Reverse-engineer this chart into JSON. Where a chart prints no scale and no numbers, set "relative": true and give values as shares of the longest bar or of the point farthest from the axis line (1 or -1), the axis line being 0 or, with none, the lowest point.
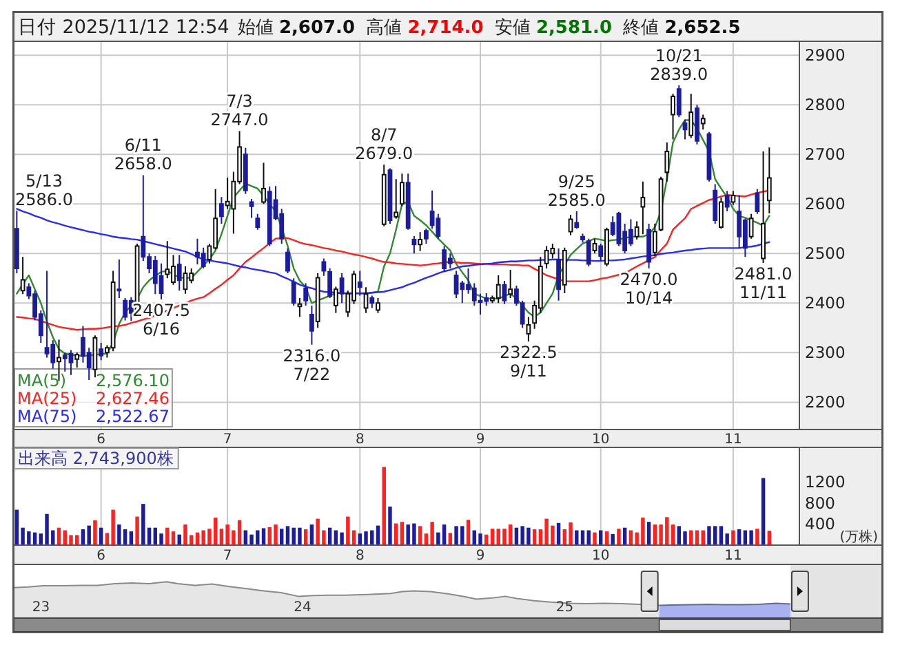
{
  "chart_data": [
    {
      "type": "candlestick",
      "title": "日付 2025/11/12 12:54",
      "annotations": [
        "始値 **2,607.0**",
        "高値 **2,714.0**",
        "安値 **2,581.0**",
        "終値 **2,652.5**",
        {
          "text": "5/13\n2586.0",
          "y": 2586
        },
        {
          "text": "6/11\n2658.0",
          "y": 2658
        },
        {
          "text": "2407.5\n6/16",
          "y": 2407.5
        },
        {
          "text": "7/3\n2747.0",
          "y": 2747
        },
        {
          "text": "2316.0\n7/22",
          "y": 2316
        },
        {
          "text": "8/7\n2679.0",
          "y": 2679
        },
        {
          "text": "2322.5\n9/11",
          "y": 2322.5
        },
        {
          "text": "9/25\n2585.0",
          "y": 2585
        },
        {
          "text": "2470.0\n10/14",
          "y": 2470
        },
        {
          "text": "10/21\n2839.0",
          "y": 2839
        },
        {
          "text": "2481.0\n11/11",
          "y": 2481
        }
      ],
      "categories": [
        null,
        null,
        null,
        null,
        null,
        null,
        null,
        null,
        null,
        null,
        null,
        null,
        null,
        null,
        "6",
        null,
        null,
        null,
        null,
        null,
        null,
        null,
        null,
        null,
        null,
        null,
        null,
        null,
        null,
        null,
        null,
        null,
        null,
        null,
        null,
        "7",
        null,
        null,
        null,
        null,
        null,
        null,
        null,
        null,
        null,
        null,
        null,
        null,
        null,
        null,
        null,
        null,
        null,
        null,
        null,
        null,
        null,
        "8",
        null,
        null,
        null,
        null,
        null,
        null,
        null,
        null,
        null,
        null,
        null,
        null,
        null,
        null,
        null,
        null,
        null,
        null,
        null,
        "9",
        null,
        null,
        null,
        null,
        null,
        null,
        null,
        null,
        null,
        null,
        null,
        null,
        null,
        null,
        null,
        null,
        null,
        null,
        null,
        "10",
        null,
        null,
        null,
        null,
        null,
        null,
        null,
        null,
        null,
        null,
        null,
        null,
        null,
        null,
        null,
        null,
        null,
        null,
        null,
        null,
        null,
        "11",
        null,
        null,
        null,
        null,
        null,
        null
      ],
      "ohlc": [
        [
          2550,
          2586,
          2460,
          2470
        ],
        [
          2425,
          2493,
          2418,
          2447
        ],
        [
          2432,
          2440,
          2408,
          2415
        ],
        [
          2418,
          2425,
          2365,
          2372
        ],
        [
          2378,
          2385,
          2320,
          2335
        ],
        [
          2310,
          2465,
          2290,
          2298
        ],
        [
          2316,
          2325,
          2268,
          2280
        ],
        [
          2282,
          2326,
          2243,
          2290
        ],
        [
          2295,
          2300,
          2262,
          2288
        ],
        [
          2298,
          2305,
          2255,
          2280
        ],
        [
          2287,
          2300,
          2270,
          2296
        ],
        [
          2330,
          2354,
          2280,
          2293
        ],
        [
          2300,
          2310,
          2245,
          2270
        ],
        [
          2266,
          2335,
          2250,
          2330
        ],
        [
          2307,
          2320,
          2285,
          2294
        ],
        [
          2300,
          2315,
          2290,
          2310
        ],
        [
          2310,
          2465,
          2303,
          2442
        ],
        [
          2427,
          2488,
          2410,
          2426
        ],
        [
          2405,
          2410,
          2365,
          2372
        ],
        [
          2405,
          2412,
          2364,
          2380
        ],
        [
          2380,
          2520,
          2376,
          2515
        ],
        [
          2534,
          2658,
          2485,
          2493
        ],
        [
          2493,
          2500,
          2460,
          2470
        ],
        [
          2485,
          2495,
          2418,
          2440
        ],
        [
          2455,
          2480,
          2407.5,
          2420
        ],
        [
          2458,
          2525,
          2450,
          2468
        ],
        [
          2442,
          2497,
          2437,
          2474
        ],
        [
          2478,
          2497,
          2425,
          2446
        ],
        [
          2428,
          2474,
          2419,
          2460
        ],
        [
          2446,
          2470,
          2440,
          2460
        ],
        [
          2502,
          2530,
          2478,
          2493
        ],
        [
          2500,
          2512,
          2470,
          2474
        ],
        [
          2488,
          2520,
          2480,
          2515
        ],
        [
          2511,
          2630,
          2508,
          2571
        ],
        [
          2600,
          2614,
          2560,
          2575
        ],
        [
          2597,
          2653,
          2590,
          2605
        ],
        [
          2590,
          2665,
          2540,
          2645
        ],
        [
          2645,
          2747,
          2640,
          2715
        ],
        [
          2700,
          2713,
          2620,
          2627
        ],
        [
          2604,
          2610,
          2572,
          2595
        ],
        [
          2571,
          2580,
          2548,
          2553
        ],
        [
          2604,
          2683,
          2600,
          2631
        ],
        [
          2625,
          2635,
          2515,
          2520
        ],
        [
          2608,
          2636,
          2567,
          2571
        ],
        [
          2580,
          2590,
          2520,
          2530
        ],
        [
          2502,
          2510,
          2460,
          2465
        ],
        [
          2442,
          2450,
          2395,
          2400
        ],
        [
          2393,
          2410,
          2372,
          2398
        ],
        [
          2430,
          2440,
          2395,
          2405
        ],
        [
          2377,
          2395,
          2316,
          2344
        ],
        [
          2363,
          2460,
          2350,
          2451
        ],
        [
          2483,
          2490,
          2455,
          2465
        ],
        [
          2463,
          2470,
          2410,
          2414
        ],
        [
          2395,
          2433,
          2380,
          2428
        ],
        [
          2450,
          2460,
          2400,
          2419
        ],
        [
          2382,
          2425,
          2372,
          2419
        ],
        [
          2405,
          2465,
          2398,
          2458
        ],
        [
          2442,
          2465,
          2415,
          2432
        ],
        [
          2390,
          2432,
          2380,
          2418
        ],
        [
          2410,
          2415,
          2390,
          2400
        ],
        [
          2386,
          2410,
          2380,
          2400
        ],
        [
          2559,
          2679,
          2555,
          2659
        ],
        [
          2668,
          2672,
          2560,
          2567
        ],
        [
          2574,
          2650,
          2570,
          2583
        ],
        [
          2600,
          2661,
          2595,
          2643
        ],
        [
          2643,
          2661,
          2548,
          2551
        ],
        [
          2528,
          2535,
          2500,
          2518
        ],
        [
          2518,
          2543,
          2505,
          2528
        ],
        [
          2546,
          2550,
          2520,
          2530
        ],
        [
          2585,
          2627,
          2550,
          2557
        ],
        [
          2571,
          2580,
          2530,
          2535
        ],
        [
          2507,
          2515,
          2463,
          2470
        ],
        [
          2490,
          2500,
          2470,
          2480
        ],
        [
          2456,
          2465,
          2410,
          2419
        ],
        [
          2440,
          2445,
          2400,
          2428
        ],
        [
          2437,
          2470,
          2419,
          2428
        ],
        [
          2430,
          2440,
          2395,
          2405
        ],
        [
          2405,
          2419,
          2377,
          2402
        ],
        [
          2410,
          2420,
          2395,
          2404
        ],
        [
          2405,
          2415,
          2400,
          2410
        ],
        [
          2410,
          2456,
          2400,
          2437
        ],
        [
          2437,
          2445,
          2398,
          2405
        ],
        [
          2418,
          2467,
          2410,
          2428
        ],
        [
          2428,
          2435,
          2395,
          2400
        ],
        [
          2400,
          2405,
          2350,
          2358
        ],
        [
          2338,
          2372,
          2322.5,
          2356
        ],
        [
          2360,
          2405,
          2348,
          2395
        ],
        [
          2390,
          2493,
          2380,
          2474
        ],
        [
          2480,
          2515,
          2470,
          2506
        ],
        [
          2500,
          2520,
          2490,
          2510
        ],
        [
          2488,
          2510,
          2405,
          2428
        ],
        [
          2437,
          2512,
          2420,
          2506
        ],
        [
          2544,
          2578,
          2537,
          2569
        ],
        [
          2562,
          2585,
          2550,
          2553
        ],
        [
          2534,
          2540,
          2522,
          2528
        ],
        [
          2525,
          2530,
          2474,
          2479
        ],
        [
          2506,
          2530,
          2500,
          2520
        ],
        [
          2515,
          2520,
          2485,
          2495
        ],
        [
          2479,
          2552,
          2474,
          2548
        ],
        [
          2562,
          2575,
          2535,
          2539
        ],
        [
          2581,
          2584,
          2515,
          2520
        ],
        [
          2544,
          2560,
          2500,
          2506
        ],
        [
          2548,
          2569,
          2515,
          2520
        ],
        [
          2534,
          2565,
          2528,
          2553
        ],
        [
          2594,
          2645,
          2539,
          2613
        ],
        [
          2548,
          2560,
          2470,
          2483
        ],
        [
          2502,
          2560,
          2495,
          2544
        ],
        [
          2548,
          2655,
          2545,
          2650
        ],
        [
          2664,
          2724,
          2645,
          2706
        ],
        [
          2780,
          2822,
          2730,
          2817
        ],
        [
          2832,
          2839,
          2775,
          2780
        ],
        [
          2763,
          2770,
          2730,
          2750
        ],
        [
          2738,
          2822,
          2733,
          2785
        ],
        [
          2793,
          2800,
          2720,
          2727
        ],
        [
          2762,
          2780,
          2750,
          2772
        ],
        [
          2741,
          2745,
          2645,
          2650
        ],
        [
          2627,
          2640,
          2560,
          2567
        ],
        [
          2553,
          2613,
          2550,
          2604
        ],
        [
          2617,
          2626,
          2585,
          2594
        ],
        [
          2604,
          2626,
          2598,
          2617
        ],
        [
          2585,
          2617,
          2511,
          2534
        ],
        [
          2567,
          2570,
          2493,
          2511
        ],
        [
          2534,
          2580,
          2530,
          2571
        ],
        [
          2622,
          2630,
          2580,
          2585
        ],
        [
          2490,
          2706,
          2481,
          2560
        ],
        [
          2607,
          2714,
          2581,
          2652.5
        ]
      ],
      "colors": [
        "#1c1c9c",
        "#ffffff",
        "#1c1c9c",
        "#1c1c9c",
        "#1c1c9c",
        "#1c1c9c",
        "#1c1c9c",
        "#ffffff",
        "#1c1c9c",
        "#1c1c9c",
        "#ffffff",
        "#1c1c9c",
        "#1c1c9c",
        "#ffffff",
        "#1c1c9c",
        "#ffffff",
        "#ffffff",
        "#1c1c9c",
        "#1c1c9c",
        "#1c1c9c",
        "#ffffff",
        "#1c1c9c",
        "#1c1c9c",
        "#1c1c9c",
        "#1c1c9c",
        "#ffffff",
        "#ffffff",
        "#1c1c9c",
        "#ffffff",
        "#ffffff",
        "#1c1c9c",
        "#1c1c9c",
        "#ffffff",
        "#ffffff",
        "#1c1c9c",
        "#ffffff",
        "#ffffff",
        "#ffffff",
        "#1c1c9c",
        "#1c1c9c",
        "#1c1c9c",
        "#ffffff",
        "#1c1c9c",
        "#1c1c9c",
        "#1c1c9c",
        "#1c1c9c",
        "#1c1c9c",
        "#ffffff",
        "#1c1c9c",
        "#1c1c9c",
        "#ffffff",
        "#1c1c9c",
        "#1c1c9c",
        "#ffffff",
        "#1c1c9c",
        "#ffffff",
        "#ffffff",
        "#1c1c9c",
        "#ffffff",
        "#1c1c9c",
        "#ffffff",
        "#ffffff",
        "#1c1c9c",
        "#ffffff",
        "#ffffff",
        "#1c1c9c",
        "#1c1c9c",
        "#ffffff",
        "#1c1c9c",
        "#1c1c9c",
        "#1c1c9c",
        "#1c1c9c",
        "#1c1c9c",
        "#1c1c9c",
        "#1c1c9c",
        "#1c1c9c",
        "#1c1c9c",
        "#1c1c9c",
        "#1c1c9c",
        "#ffffff",
        "#ffffff",
        "#1c1c9c",
        "#ffffff",
        "#1c1c9c",
        "#1c1c9c",
        "#ffffff",
        "#ffffff",
        "#ffffff",
        "#ffffff",
        "#ffffff",
        "#1c1c9c",
        "#ffffff",
        "#ffffff",
        "#1c1c9c",
        "#1c1c9c",
        "#1c1c9c",
        "#ffffff",
        "#1c1c9c",
        "#ffffff",
        "#1c1c9c",
        "#1c1c9c",
        "#1c1c9c",
        "#1c1c9c",
        "#ffffff",
        "#ffffff",
        "#1c1c9c",
        "#ffffff",
        "#ffffff",
        "#ffffff",
        "#ffffff",
        "#1c1c9c",
        "#1c1c9c",
        "#ffffff",
        "#1c1c9c",
        "#ffffff",
        "#1c1c9c",
        "#1c1c9c",
        "#ffffff",
        "#1c1c9c",
        "#ffffff",
        "#1c1c9c",
        "#1c1c9c",
        "#ffffff",
        "#1c1c9c",
        "#ffffff",
        "#ffffff"
      ],
      "series": [
        {
          "type": "line",
          "name": "MA(5) 2,576.10",
          "color": "#2e8b2e",
          "values": [
            2419,
            2438,
            2456,
            2428,
            2400,
            2363,
            2331,
            2307,
            2298,
            2296,
            2294,
            2294,
            2294,
            2296,
            2297,
            2298,
            2321,
            2358,
            2381,
            2395,
            2409,
            2432,
            2446,
            2455,
            2463,
            2465,
            2458,
            2451,
            2451,
            2451,
            2463,
            2476,
            2488,
            2506,
            2539,
            2576,
            2613,
            2627,
            2641,
            2636,
            2631,
            2616,
            2600,
            2585,
            2552,
            2515,
            2470,
            2445,
            2432,
            2400,
            2405,
            2410,
            2415,
            2420,
            2420,
            2419,
            2419,
            2419,
            2419,
            2421,
            2423,
            2474,
            2500,
            2548,
            2600,
            2604,
            2576,
            2567,
            2557,
            2544,
            2530,
            2518,
            2506,
            2479,
            2462,
            2446,
            2419,
            2414,
            2409,
            2409,
            2409,
            2414,
            2419,
            2409,
            2395,
            2381,
            2372,
            2381,
            2400,
            2419,
            2456,
            2477,
            2497,
            2509,
            2520,
            2525,
            2530,
            2528,
            2525,
            2527,
            2528,
            2531,
            2534,
            2534,
            2534,
            2539,
            2553,
            2585,
            2650,
            2724,
            2750,
            2769,
            2769,
            2752,
            2729,
            2706,
            2650,
            2631,
            2613,
            2590,
            2576,
            2572,
            2567,
            2562,
            2556,
            2576
          ]
        },
        {
          "type": "line",
          "name": "MA(25) 2,627.46",
          "color": "#ff2020",
          "values": [
            2372,
            2371,
            2369,
            2368,
            2364,
            2360,
            2356,
            2352,
            2350,
            2348,
            2346,
            2347,
            2348,
            2348,
            2349,
            2351,
            2353,
            2354,
            2356,
            2360,
            2363,
            2367,
            2370,
            2375,
            2380,
            2385,
            2390,
            2395,
            2400,
            2405,
            2409,
            2412,
            2420,
            2429,
            2437,
            2447,
            2456,
            2470,
            2483,
            2492,
            2502,
            2511,
            2521,
            2530,
            2531,
            2531,
            2527,
            2522,
            2519,
            2517,
            2514,
            2511,
            2509,
            2506,
            2504,
            2501,
            2498,
            2496,
            2493,
            2490,
            2486,
            2483,
            2482,
            2480,
            2479,
            2478,
            2477,
            2476,
            2477,
            2479,
            2480,
            2482,
            2483,
            2482,
            2481,
            2481,
            2480,
            2479,
            2479,
            2478,
            2478,
            2478,
            2477,
            2477,
            2476,
            2476,
            2469,
            2463,
            2456,
            2452,
            2448,
            2444,
            2444,
            2444,
            2444,
            2444,
            2446,
            2449,
            2451,
            2454,
            2457,
            2460,
            2467,
            2474,
            2480,
            2487,
            2493,
            2507,
            2520,
            2548,
            2560,
            2571,
            2590,
            2596,
            2602,
            2608,
            2611,
            2615,
            2618,
            2617,
            2616,
            2615,
            2619,
            2622,
            2625,
            2627
          ]
        },
        {
          "type": "line",
          "name": "MA(75) 2,522.67",
          "color": "#2a2aff",
          "values": [
            2590,
            2585,
            2581,
            2576,
            2572,
            2567,
            2563,
            2560,
            2556,
            2553,
            2550,
            2547,
            2544,
            2542,
            2539,
            2537,
            2534,
            2532,
            2531,
            2529,
            2528,
            2525,
            2522,
            2519,
            2516,
            2513,
            2510,
            2507,
            2504,
            2499,
            2493,
            2488,
            2486,
            2484,
            2482,
            2480,
            2477,
            2474,
            2472,
            2469,
            2467,
            2465,
            2462,
            2460,
            2454,
            2449,
            2443,
            2437,
            2433,
            2430,
            2426,
            2423,
            2422,
            2421,
            2420,
            2420,
            2420,
            2420,
            2420,
            2421,
            2422,
            2423,
            2426,
            2429,
            2432,
            2437,
            2441,
            2446,
            2451,
            2455,
            2460,
            2464,
            2467,
            2471,
            2474,
            2475,
            2477,
            2478,
            2479,
            2480,
            2482,
            2483,
            2484,
            2484,
            2485,
            2486,
            2486,
            2487,
            2487,
            2488,
            2488,
            2487,
            2487,
            2487,
            2486,
            2486,
            2485,
            2485,
            2486,
            2486,
            2487,
            2488,
            2490,
            2492,
            2494,
            2495,
            2497,
            2499,
            2501,
            2502,
            2504,
            2506,
            2507,
            2509,
            2510,
            2511,
            2511,
            2511,
            2511,
            2511,
            2511,
            2513,
            2514,
            2516,
            2520,
            2523
          ]
        }
      ],
      "ylim": [
        2145,
        2928
      ],
      "yticks": [
        2200,
        2300,
        2400,
        2500,
        2600,
        2700,
        2800,
        2900
      ],
      "grid": true,
      "legend": "bottom left"
    },
    {
      "type": "bar",
      "title": "出来高 2,743,900株",
      "ylabel": "(万株)",
      "categories": [
        null,
        null,
        null,
        null,
        null,
        null,
        null,
        null,
        null,
        null,
        null,
        null,
        null,
        null,
        "6",
        null,
        null,
        null,
        null,
        null,
        null,
        null,
        null,
        null,
        null,
        null,
        null,
        null,
        null,
        null,
        null,
        null,
        null,
        null,
        null,
        "7",
        null,
        null,
        null,
        null,
        null,
        null,
        null,
        null,
        null,
        null,
        null,
        null,
        null,
        null,
        null,
        null,
        null,
        null,
        null,
        null,
        null,
        "8",
        null,
        null,
        null,
        null,
        null,
        null,
        null,
        null,
        null,
        null,
        null,
        null,
        null,
        null,
        null,
        null,
        null,
        null,
        null,
        "9",
        null,
        null,
        null,
        null,
        null,
        null,
        null,
        null,
        null,
        null,
        null,
        null,
        null,
        null,
        null,
        null,
        null,
        null,
        null,
        "10",
        null,
        null,
        null,
        null,
        null,
        null,
        null,
        null,
        null,
        null,
        null,
        null,
        null,
        null,
        null,
        null,
        null,
        null,
        null,
        null,
        null,
        "11",
        null,
        null,
        null,
        null,
        null,
        null
      ],
      "values": [
        670,
        330,
        260,
        240,
        220,
        590,
        280,
        330,
        280,
        190,
        190,
        300,
        370,
        470,
        330,
        230,
        670,
        390,
        300,
        260,
        540,
        780,
        330,
        330,
        220,
        330,
        260,
        200,
        390,
        190,
        240,
        280,
        310,
        520,
        310,
        390,
        280,
        470,
        280,
        200,
        280,
        320,
        340,
        390,
        310,
        360,
        330,
        330,
        300,
        390,
        500,
        280,
        330,
        280,
        240,
        540,
        280,
        220,
        260,
        280,
        370,
        1480,
        730,
        410,
        440,
        390,
        410,
        360,
        220,
        440,
        240,
        390,
        230,
        360,
        360,
        480,
        280,
        220,
        200,
        310,
        310,
        310,
        390,
        330,
        360,
        330,
        300,
        300,
        500,
        370,
        420,
        300,
        430,
        280,
        280,
        280,
        240,
        280,
        260,
        210,
        310,
        330,
        280,
        240,
        520,
        440,
        390,
        390,
        530,
        390,
        360,
        260,
        280,
        280,
        280,
        360,
        360,
        360,
        220,
        280,
        300,
        280,
        280,
        310,
        1270,
        274
      ],
      "colors": [
        "#1c1c9c",
        "#1c1c9c",
        "#1c1c9c",
        "#1c1c9c",
        "#1c1c9c",
        "#1c1c9c",
        "#1c1c9c",
        "#ff2020",
        "#ff2020",
        "#ff2020",
        "#ff2020",
        "#1c1c9c",
        "#1c1c9c",
        "#ff2020",
        "#1c1c9c",
        "#ff2020",
        "#ff2020",
        "#1c1c9c",
        "#1c1c9c",
        "#1c1c9c",
        "#ff2020",
        "#1c1c9c",
        "#1c1c9c",
        "#1c1c9c",
        "#1c1c9c",
        "#ff2020",
        "#ff2020",
        "#1c1c9c",
        "#ff2020",
        "#ff2020",
        "#ff2020",
        "#ff2020",
        "#ff2020",
        "#ff2020",
        "#ff2020",
        "#ff2020",
        "#ff2020",
        "#ff2020",
        "#1c1c9c",
        "#1c1c9c",
        "#1c1c9c",
        "#1c1c9c",
        "#ff2020",
        "#ff2020",
        "#1c1c9c",
        "#1c1c9c",
        "#1c1c9c",
        "#1c1c9c",
        "#ff2020",
        "#1c1c9c",
        "#ff2020",
        "#ff2020",
        "#1c1c9c",
        "#1c1c9c",
        "#1c1c9c",
        "#ff2020",
        "#ff2020",
        "#1c1c9c",
        "#1c1c9c",
        "#1c1c9c",
        "#1c1c9c",
        "#ff2020",
        "#1c1c9c",
        "#ff2020",
        "#ff2020",
        "#1c1c9c",
        "#1c1c9c",
        "#ff2020",
        "#ff2020",
        "#ff2020",
        "#1c1c9c",
        "#1c1c9c",
        "#ff2020",
        "#1c1c9c",
        "#1c1c9c",
        "#ff2020",
        "#1c1c9c",
        "#1c1c9c",
        "#ff2020",
        "#ff2020",
        "#ff2020",
        "#ff2020",
        "#ff2020",
        "#1c1c9c",
        "#1c1c9c",
        "#1c1c9c",
        "#ff2020",
        "#ff2020",
        "#ff2020",
        "#ff2020",
        "#1c1c9c",
        "#ff2020",
        "#ff2020",
        "#1c1c9c",
        "#1c1c9c",
        "#1c1c9c",
        "#ff2020",
        "#1c1c9c",
        "#ff2020",
        "#1c1c9c",
        "#ff2020",
        "#1c1c9c",
        "#ff2020",
        "#ff2020",
        "#ff2020",
        "#1c1c9c",
        "#ff2020",
        "#ff2020",
        "#ff2020",
        "#ff2020",
        "#1c1c9c",
        "#1c1c9c",
        "#ff2020",
        "#ff2020",
        "#ff2020",
        "#1c1c9c",
        "#1c1c9c",
        "#1c1c9c",
        "#1c1c9c",
        "#ff2020",
        "#1c1c9c",
        "#1c1c9c",
        "#1c1c9c",
        "#ff2020",
        "#1c1c9c",
        "#ff2020"
      ],
      "ylim": [
        0,
        1850
      ],
      "yticks": [
        400,
        800,
        1200
      ],
      "grid": "x"
    },
    {
      "type": "area",
      "relative": true,
      "series": [
        {
          "color": "#e6e6e6",
          "x": [
            "2022-11-24",
            "2022-12-14",
            "2023-01-04",
            "2023-02-01",
            "2023-02-25",
            "2023-03-21",
            "2023-04-14",
            "2023-05-08",
            "2023-06-01",
            "2023-06-25",
            "2023-07-11",
            "2023-08-04",
            "2023-08-28",
            "2023-09-21",
            "2023-10-15",
            "2023-11-08",
            "2023-12-02",
            "2023-12-26",
            "2024-01-16",
            "2024-02-05",
            "2024-02-29",
            "2024-04-01",
            "2024-05-03",
            "2024-05-19",
            "2024-06-04",
            "2024-06-28",
            "2024-07-22",
            "2024-08-15",
            "2024-08-31",
            "2024-09-24",
            "2024-10-10",
            "2024-10-26",
            "2024-11-19",
            "2024-12-13",
            "2025-01-08",
            "2025-02-01",
            "2025-02-25",
            "2025-03-21",
            "2025-04-14",
            "2025-05-13"
          ],
          "values": [
            0.84,
            0.86,
            0.89,
            0.89,
            0.9,
            0.9,
            0.95,
            0.97,
            0.95,
            1.0,
            0.95,
            0.9,
            0.94,
            0.87,
            0.81,
            0.75,
            0.7,
            0.6,
            0.62,
            0.63,
            0.63,
            0.65,
            0.68,
            0.73,
            0.75,
            0.73,
            0.67,
            0.59,
            0.52,
            0.56,
            0.6,
            0.54,
            0.48,
            0.44,
            0.41,
            0.4,
            0.41,
            0.4,
            0.38,
            0.35
          ]
        },
        {
          "color": "#a9b1f0",
          "x": [
            "2025-05-13",
            "2025-06-01",
            "2025-06-25",
            "2025-07-19",
            "2025-08-12",
            "2025-09-05",
            "2025-09-29",
            "2025-10-23",
            "2025-11-12"
          ],
          "values": [
            0.35,
            0.36,
            0.37,
            0.38,
            0.37,
            0.37,
            0.38,
            0.41,
            0.39
          ]
        }
      ],
      "xlim": [
        "2022-11-24",
        "2026-03-20"
      ],
      "xticks": [
        {
          "value": "2023-01-01",
          "label": "23"
        },
        {
          "value": "2024-01-01",
          "label": "24"
        },
        {
          "value": "2025-01-01",
          "label": "25"
        }
      ],
      "bands": [
        {
          "axis": "x",
          "from": "2025-11-12",
          "to": "2026-03-20",
          "color": "#e4e4e4"
        }
      ]
    }
  ]
}
